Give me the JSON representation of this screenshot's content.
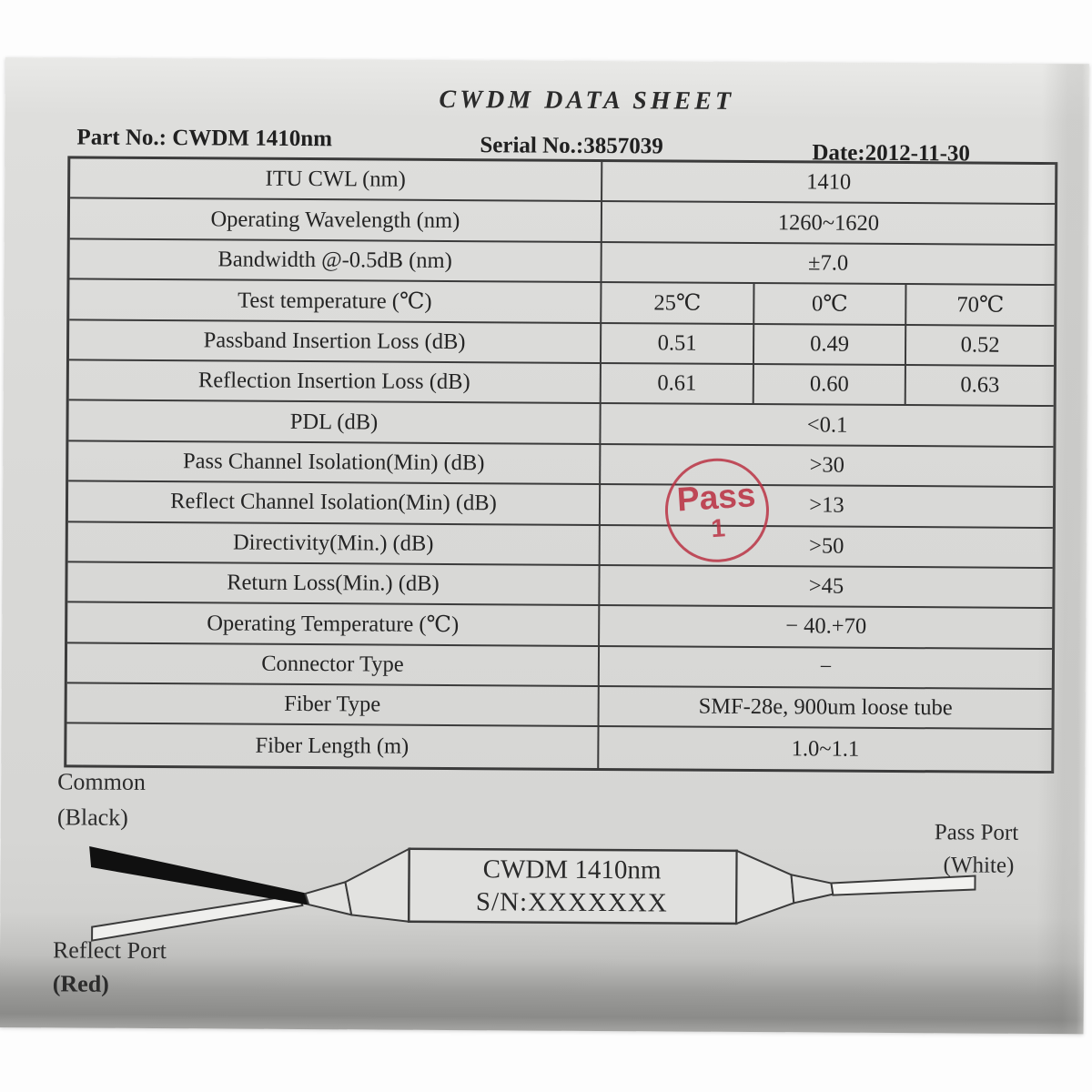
{
  "document": {
    "title": "CWDM DATA SHEET",
    "part_no": "Part No.: CWDM 1410nm",
    "serial_no": "Serial No.:3857039",
    "date": "Date:2012-11-30"
  },
  "table": {
    "rows": [
      {
        "label": "ITU CWL (nm)",
        "value": "1410"
      },
      {
        "label": "Operating Wavelength (nm)",
        "value": "1260~1620"
      },
      {
        "label": "Bandwidth @-0.5dB (nm)",
        "value": "±7.0"
      },
      {
        "label": "Test temperature (℃)",
        "values": [
          "25℃",
          "0℃",
          "70℃"
        ]
      },
      {
        "label": "Passband Insertion Loss (dB)",
        "values": [
          "0.51",
          "0.49",
          "0.52"
        ]
      },
      {
        "label": "Reflection Insertion Loss (dB)",
        "values": [
          "0.61",
          "0.60",
          "0.63"
        ]
      },
      {
        "label": "PDL (dB)",
        "value": "<0.1"
      },
      {
        "label": "Pass Channel Isolation(Min) (dB)",
        "value": ">30"
      },
      {
        "label": "Reflect Channel Isolation(Min) (dB)",
        "value": ">13"
      },
      {
        "label": "Directivity(Min.) (dB)",
        "value": ">50"
      },
      {
        "label": "Return Loss(Min.) (dB)",
        "value": ">45"
      },
      {
        "label": "Operating Temperature (℃)",
        "value": "− 40.+70"
      },
      {
        "label": "Connector Type",
        "value": "−"
      },
      {
        "label": "Fiber Type",
        "value": "SMF-28e, 900um loose tube"
      },
      {
        "label": "Fiber Length (m)",
        "value": "1.0~1.1"
      }
    ]
  },
  "stamp": {
    "word": "Pass",
    "number": "1",
    "color": "#ba3244"
  },
  "diagram": {
    "common_label": "Common",
    "common_color": "(Black)",
    "reflect_label": "Reflect Port",
    "reflect_color": "(Red)",
    "pass_label": "Pass Port",
    "pass_color": "(White)",
    "device_line1": "CWDM 1410nm",
    "device_line2": "S/N:XXXXXXX"
  }
}
